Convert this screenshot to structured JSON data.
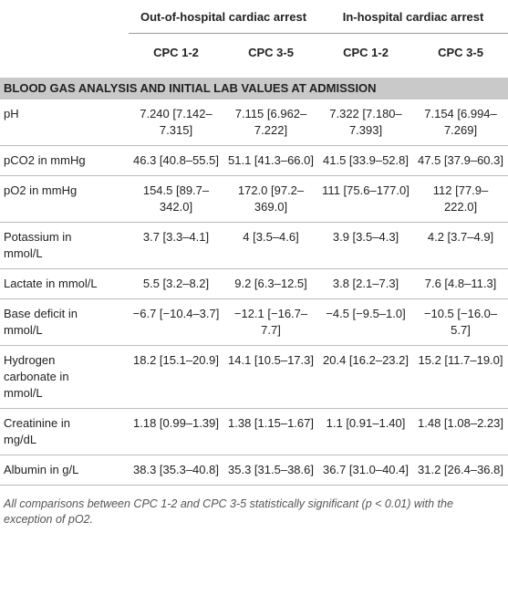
{
  "table": {
    "groups": [
      "Out-of-hospital cardiac arrest",
      "In-hospital cardiac arrest"
    ],
    "subheaders": [
      "CPC 1-2",
      "CPC 3-5",
      "CPC 1-2",
      "CPC 3-5"
    ],
    "section": "BLOOD GAS ANALYSIS AND INITIAL LAB VALUES AT ADMISSION",
    "rows": [
      [
        "pH",
        "7.240 [7.142–7.315]",
        "7.115 [6.962–7.222]",
        "7.322 [7.180–7.393]",
        "7.154 [6.994–7.269]"
      ],
      [
        "pCO2 in mmHg",
        "46.3 [40.8–55.5]",
        "51.1 [41.3–66.0]",
        "41.5 [33.9–52.8]",
        "47.5 [37.9–60.3]"
      ],
      [
        "pO2 in mmHg",
        "154.5 [89.7–342.0]",
        "172.0 [97.2–369.0]",
        "111 [75.6–177.0]",
        "112 [77.9–222.0]"
      ],
      [
        "Potassium in mmol/L",
        "3.7 [3.3–4.1]",
        "4 [3.5–4.6]",
        "3.9 [3.5–4.3]",
        "4.2 [3.7–4.9]"
      ],
      [
        "Lactate in mmol/L",
        "5.5 [3.2–8.2]",
        "9.2 [6.3–12.5]",
        "3.8 [2.1–7.3]",
        "7.6 [4.8–11.3]"
      ],
      [
        "Base deficit in mmol/L",
        "−6.7 [−10.4–3.7]",
        "−12.1 [−16.7–7.7]",
        "−4.5 [−9.5–1.0]",
        "−10.5 [−16.0–5.7]"
      ],
      [
        "Hydrogen carbonate in mmol/L",
        "18.2 [15.1–20.9]",
        "14.1 [10.5–17.3]",
        "20.4 [16.2–23.2]",
        "15.2 [11.7–19.0]"
      ],
      [
        "Creatinine in mg/dL",
        "1.18 [0.99–1.39]",
        "1.38 [1.15–1.67]",
        "1.1 [0.91–1.40]",
        "1.48 [1.08–2.23]"
      ],
      [
        "Albumin in g/L",
        "38.3 [35.3–40.8]",
        "35.3 [31.5–38.6]",
        "36.7 [31.0–40.4]",
        "31.2 [26.4–36.8]"
      ]
    ],
    "footnote": "All comparisons between CPC 1-2 and CPC 3-5 statistically significant (p < 0.01) with the exception of pO2."
  }
}
